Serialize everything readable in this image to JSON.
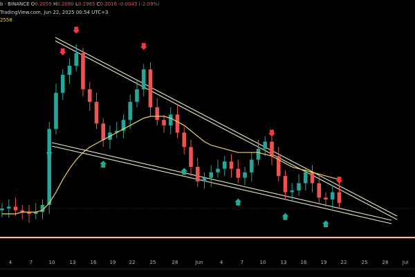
{
  "header": {
    "watermark": "TradingView.com, Jun 22, 2025 00:54 UTC+3",
    "symbol_fragment": "b · BINANCE",
    "ohlc": {
      "o_key": "O",
      "o": "0.2059",
      "h_key": "H",
      "h": "0.2080",
      "l_key": "L",
      "l": "0.1965",
      "c_key": "C",
      "c": "0.2016",
      "change": "-0.0043 (-2.09%)"
    },
    "ma_value": "2558"
  },
  "colors": {
    "up": "#26a69a",
    "down": "#ef5350",
    "ma": "#f0d264",
    "channel": "#e8e8c8",
    "marker_down": "#f23645",
    "marker_up": "#22ab94",
    "support_line": "#ffb3b3"
  },
  "chart_data": {
    "type": "candlestick",
    "symbol_fragment": "b · BINANCE",
    "x": [
      "May 2",
      "May 3",
      "May 4",
      "May 5",
      "May 6",
      "May 7",
      "May 8",
      "May 9",
      "May 10",
      "May 11",
      "May 12",
      "May 13",
      "May 14",
      "May 15",
      "May 16",
      "May 17",
      "May 18",
      "May 19",
      "May 20",
      "May 21",
      "May 22",
      "May 23",
      "May 24",
      "May 25",
      "May 26",
      "May 27",
      "May 28",
      "May 29",
      "May 30",
      "May 31",
      "Jun 1",
      "Jun 2",
      "Jun 3",
      "Jun 4",
      "Jun 5",
      "Jun 6",
      "Jun 7",
      "Jun 8",
      "Jun 9",
      "Jun 10",
      "Jun 11",
      "Jun 12",
      "Jun 13",
      "Jun 14",
      "Jun 15",
      "Jun 16",
      "Jun 17",
      "Jun 18",
      "Jun 19",
      "Jun 20",
      "Jun 21"
    ],
    "close": [
      18,
      19,
      17,
      16,
      15,
      16,
      20,
      62,
      82,
      92,
      97,
      104,
      84,
      77,
      65,
      56,
      60,
      61,
      67,
      77,
      84,
      95,
      74,
      67,
      64,
      70,
      60,
      52,
      41,
      33,
      35,
      38,
      40,
      44,
      40,
      35,
      38,
      45,
      51,
      55,
      47,
      36,
      27,
      28,
      32,
      38,
      32,
      24,
      23,
      27,
      21
    ],
    "ma_line": [
      15,
      15,
      15,
      16,
      16,
      16,
      17,
      21,
      27,
      34,
      40,
      45,
      49,
      52,
      54,
      56,
      58,
      60,
      62,
      64,
      66,
      68,
      69,
      69,
      69,
      68,
      66,
      64,
      61,
      58,
      55,
      53,
      52,
      51,
      50,
      49,
      49,
      49,
      49,
      48,
      47,
      45,
      43,
      41,
      40,
      39,
      38,
      37,
      36,
      35,
      34
    ],
    "markers_down": [
      "May 11",
      "May 13",
      "May 23",
      "Jun 11",
      "Jun 21"
    ],
    "markers_up": [
      "May 9",
      "May 17",
      "May 29",
      "Jun 6",
      "Jun 13",
      "Jun 19"
    ],
    "x_tick_labels": [
      "4",
      "7",
      "10",
      "13",
      "16",
      "19",
      "22",
      "25",
      "28",
      "Jun",
      "4",
      "7",
      "10",
      "13",
      "16",
      "19",
      "22",
      "25",
      "28",
      "Jul"
    ],
    "overlays": [
      "falling wedge upper double line",
      "falling wedge lower double line",
      "moving average",
      "horizontal support line"
    ]
  }
}
